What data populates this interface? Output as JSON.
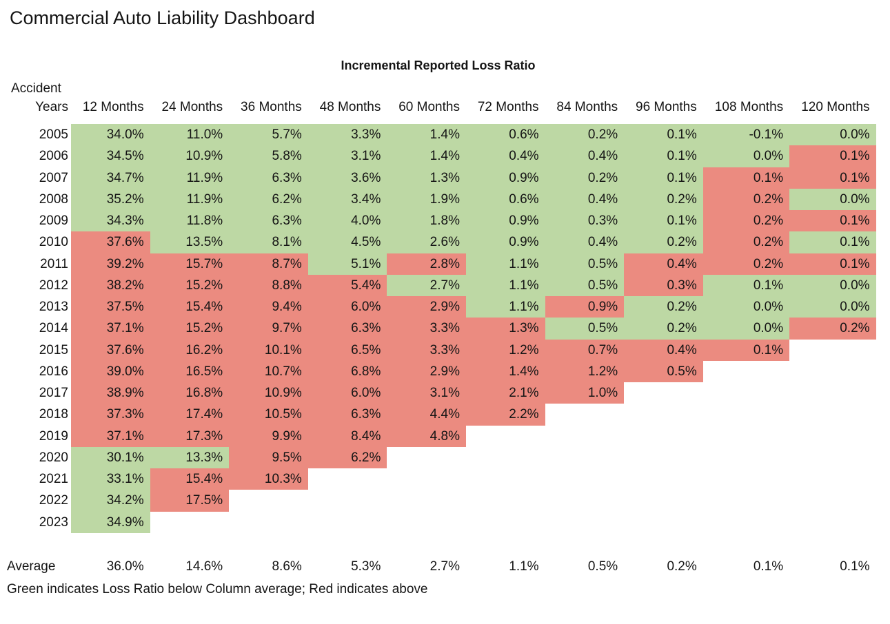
{
  "page": {
    "title": "Commercial Auto Liability Dashboard",
    "subtitle": "Incremental Reported Loss Ratio",
    "row_header_line1": "Accident",
    "row_header_line2": "Years",
    "footnote": "Green indicates Loss Ratio below Column average; Red indicates above"
  },
  "colors": {
    "below_average": "#BDD8A4",
    "above_average": "#EB8B80",
    "text": "#151515"
  },
  "chart_data": {
    "type": "heatmap",
    "title": "Incremental Reported Loss Ratio",
    "row_axis_label": "Accident Years",
    "color_legend": {
      "green": "Loss Ratio below column average",
      "red": "Loss Ratio above column average"
    },
    "columns": [
      "12 Months",
      "24 Months",
      "36 Months",
      "48 Months",
      "60 Months",
      "72 Months",
      "84 Months",
      "96 Months",
      "108 Months",
      "120 Months"
    ],
    "rows": [
      {
        "year": "2005",
        "values": [
          "34.0%",
          "11.0%",
          "5.7%",
          "3.3%",
          "1.4%",
          "0.6%",
          "0.2%",
          "0.1%",
          "-0.1%",
          "0.0%"
        ],
        "colors": [
          "g",
          "g",
          "g",
          "g",
          "g",
          "g",
          "g",
          "g",
          "g",
          "g"
        ]
      },
      {
        "year": "2006",
        "values": [
          "34.5%",
          "10.9%",
          "5.8%",
          "3.1%",
          "1.4%",
          "0.4%",
          "0.4%",
          "0.1%",
          "0.0%",
          "0.1%"
        ],
        "colors": [
          "g",
          "g",
          "g",
          "g",
          "g",
          "g",
          "g",
          "g",
          "g",
          "r"
        ]
      },
      {
        "year": "2007",
        "values": [
          "34.7%",
          "11.9%",
          "6.3%",
          "3.6%",
          "1.3%",
          "0.9%",
          "0.2%",
          "0.1%",
          "0.1%",
          "0.1%"
        ],
        "colors": [
          "g",
          "g",
          "g",
          "g",
          "g",
          "g",
          "g",
          "g",
          "r",
          "r"
        ]
      },
      {
        "year": "2008",
        "values": [
          "35.2%",
          "11.9%",
          "6.2%",
          "3.4%",
          "1.9%",
          "0.6%",
          "0.4%",
          "0.2%",
          "0.2%",
          "0.0%"
        ],
        "colors": [
          "g",
          "g",
          "g",
          "g",
          "g",
          "g",
          "g",
          "g",
          "r",
          "g"
        ]
      },
      {
        "year": "2009",
        "values": [
          "34.3%",
          "11.8%",
          "6.3%",
          "4.0%",
          "1.8%",
          "0.9%",
          "0.3%",
          "0.1%",
          "0.2%",
          "0.1%"
        ],
        "colors": [
          "g",
          "g",
          "g",
          "g",
          "g",
          "g",
          "g",
          "g",
          "r",
          "r"
        ]
      },
      {
        "year": "2010",
        "values": [
          "37.6%",
          "13.5%",
          "8.1%",
          "4.5%",
          "2.6%",
          "0.9%",
          "0.4%",
          "0.2%",
          "0.2%",
          "0.1%"
        ],
        "colors": [
          "r",
          "g",
          "g",
          "g",
          "g",
          "g",
          "g",
          "g",
          "r",
          "g"
        ]
      },
      {
        "year": "2011",
        "values": [
          "39.2%",
          "15.7%",
          "8.7%",
          "5.1%",
          "2.8%",
          "1.1%",
          "0.5%",
          "0.4%",
          "0.2%",
          "0.1%"
        ],
        "colors": [
          "r",
          "r",
          "r",
          "g",
          "r",
          "g",
          "g",
          "r",
          "r",
          "r"
        ]
      },
      {
        "year": "2012",
        "values": [
          "38.2%",
          "15.2%",
          "8.8%",
          "5.4%",
          "2.7%",
          "1.1%",
          "0.5%",
          "0.3%",
          "0.1%",
          "0.0%"
        ],
        "colors": [
          "r",
          "r",
          "r",
          "r",
          "g",
          "g",
          "g",
          "r",
          "g",
          "g"
        ]
      },
      {
        "year": "2013",
        "values": [
          "37.5%",
          "15.4%",
          "9.4%",
          "6.0%",
          "2.9%",
          "1.1%",
          "0.9%",
          "0.2%",
          "0.0%",
          "0.0%"
        ],
        "colors": [
          "r",
          "r",
          "r",
          "r",
          "r",
          "g",
          "r",
          "g",
          "g",
          "g"
        ]
      },
      {
        "year": "2014",
        "values": [
          "37.1%",
          "15.2%",
          "9.7%",
          "6.3%",
          "3.3%",
          "1.3%",
          "0.5%",
          "0.2%",
          "0.0%",
          "0.2%"
        ],
        "colors": [
          "r",
          "r",
          "r",
          "r",
          "r",
          "r",
          "g",
          "g",
          "g",
          "r"
        ]
      },
      {
        "year": "2015",
        "values": [
          "37.6%",
          "16.2%",
          "10.1%",
          "6.5%",
          "3.3%",
          "1.2%",
          "0.7%",
          "0.4%",
          "0.1%"
        ],
        "colors": [
          "r",
          "r",
          "r",
          "r",
          "r",
          "r",
          "r",
          "r",
          "r"
        ]
      },
      {
        "year": "2016",
        "values": [
          "39.0%",
          "16.5%",
          "10.7%",
          "6.8%",
          "2.9%",
          "1.4%",
          "1.2%",
          "0.5%"
        ],
        "colors": [
          "r",
          "r",
          "r",
          "r",
          "r",
          "r",
          "r",
          "r"
        ]
      },
      {
        "year": "2017",
        "values": [
          "38.9%",
          "16.8%",
          "10.9%",
          "6.0%",
          "3.1%",
          "2.1%",
          "1.0%"
        ],
        "colors": [
          "r",
          "r",
          "r",
          "r",
          "r",
          "r",
          "r"
        ]
      },
      {
        "year": "2018",
        "values": [
          "37.3%",
          "17.4%",
          "10.5%",
          "6.3%",
          "4.4%",
          "2.2%"
        ],
        "colors": [
          "r",
          "r",
          "r",
          "r",
          "r",
          "r"
        ]
      },
      {
        "year": "2019",
        "values": [
          "37.1%",
          "17.3%",
          "9.9%",
          "8.4%",
          "4.8%"
        ],
        "colors": [
          "r",
          "r",
          "r",
          "r",
          "r"
        ]
      },
      {
        "year": "2020",
        "values": [
          "30.1%",
          "13.3%",
          "9.5%",
          "6.2%"
        ],
        "colors": [
          "g",
          "g",
          "r",
          "r"
        ]
      },
      {
        "year": "2021",
        "values": [
          "33.1%",
          "15.4%",
          "10.3%"
        ],
        "colors": [
          "g",
          "r",
          "r"
        ]
      },
      {
        "year": "2022",
        "values": [
          "34.2%",
          "17.5%"
        ],
        "colors": [
          "g",
          "r"
        ]
      },
      {
        "year": "2023",
        "values": [
          "34.9%"
        ],
        "colors": [
          "g"
        ]
      }
    ],
    "average": {
      "label": "Average",
      "values": [
        "36.0%",
        "14.6%",
        "8.6%",
        "5.3%",
        "2.7%",
        "1.1%",
        "0.5%",
        "0.2%",
        "0.1%",
        "0.1%"
      ]
    }
  }
}
